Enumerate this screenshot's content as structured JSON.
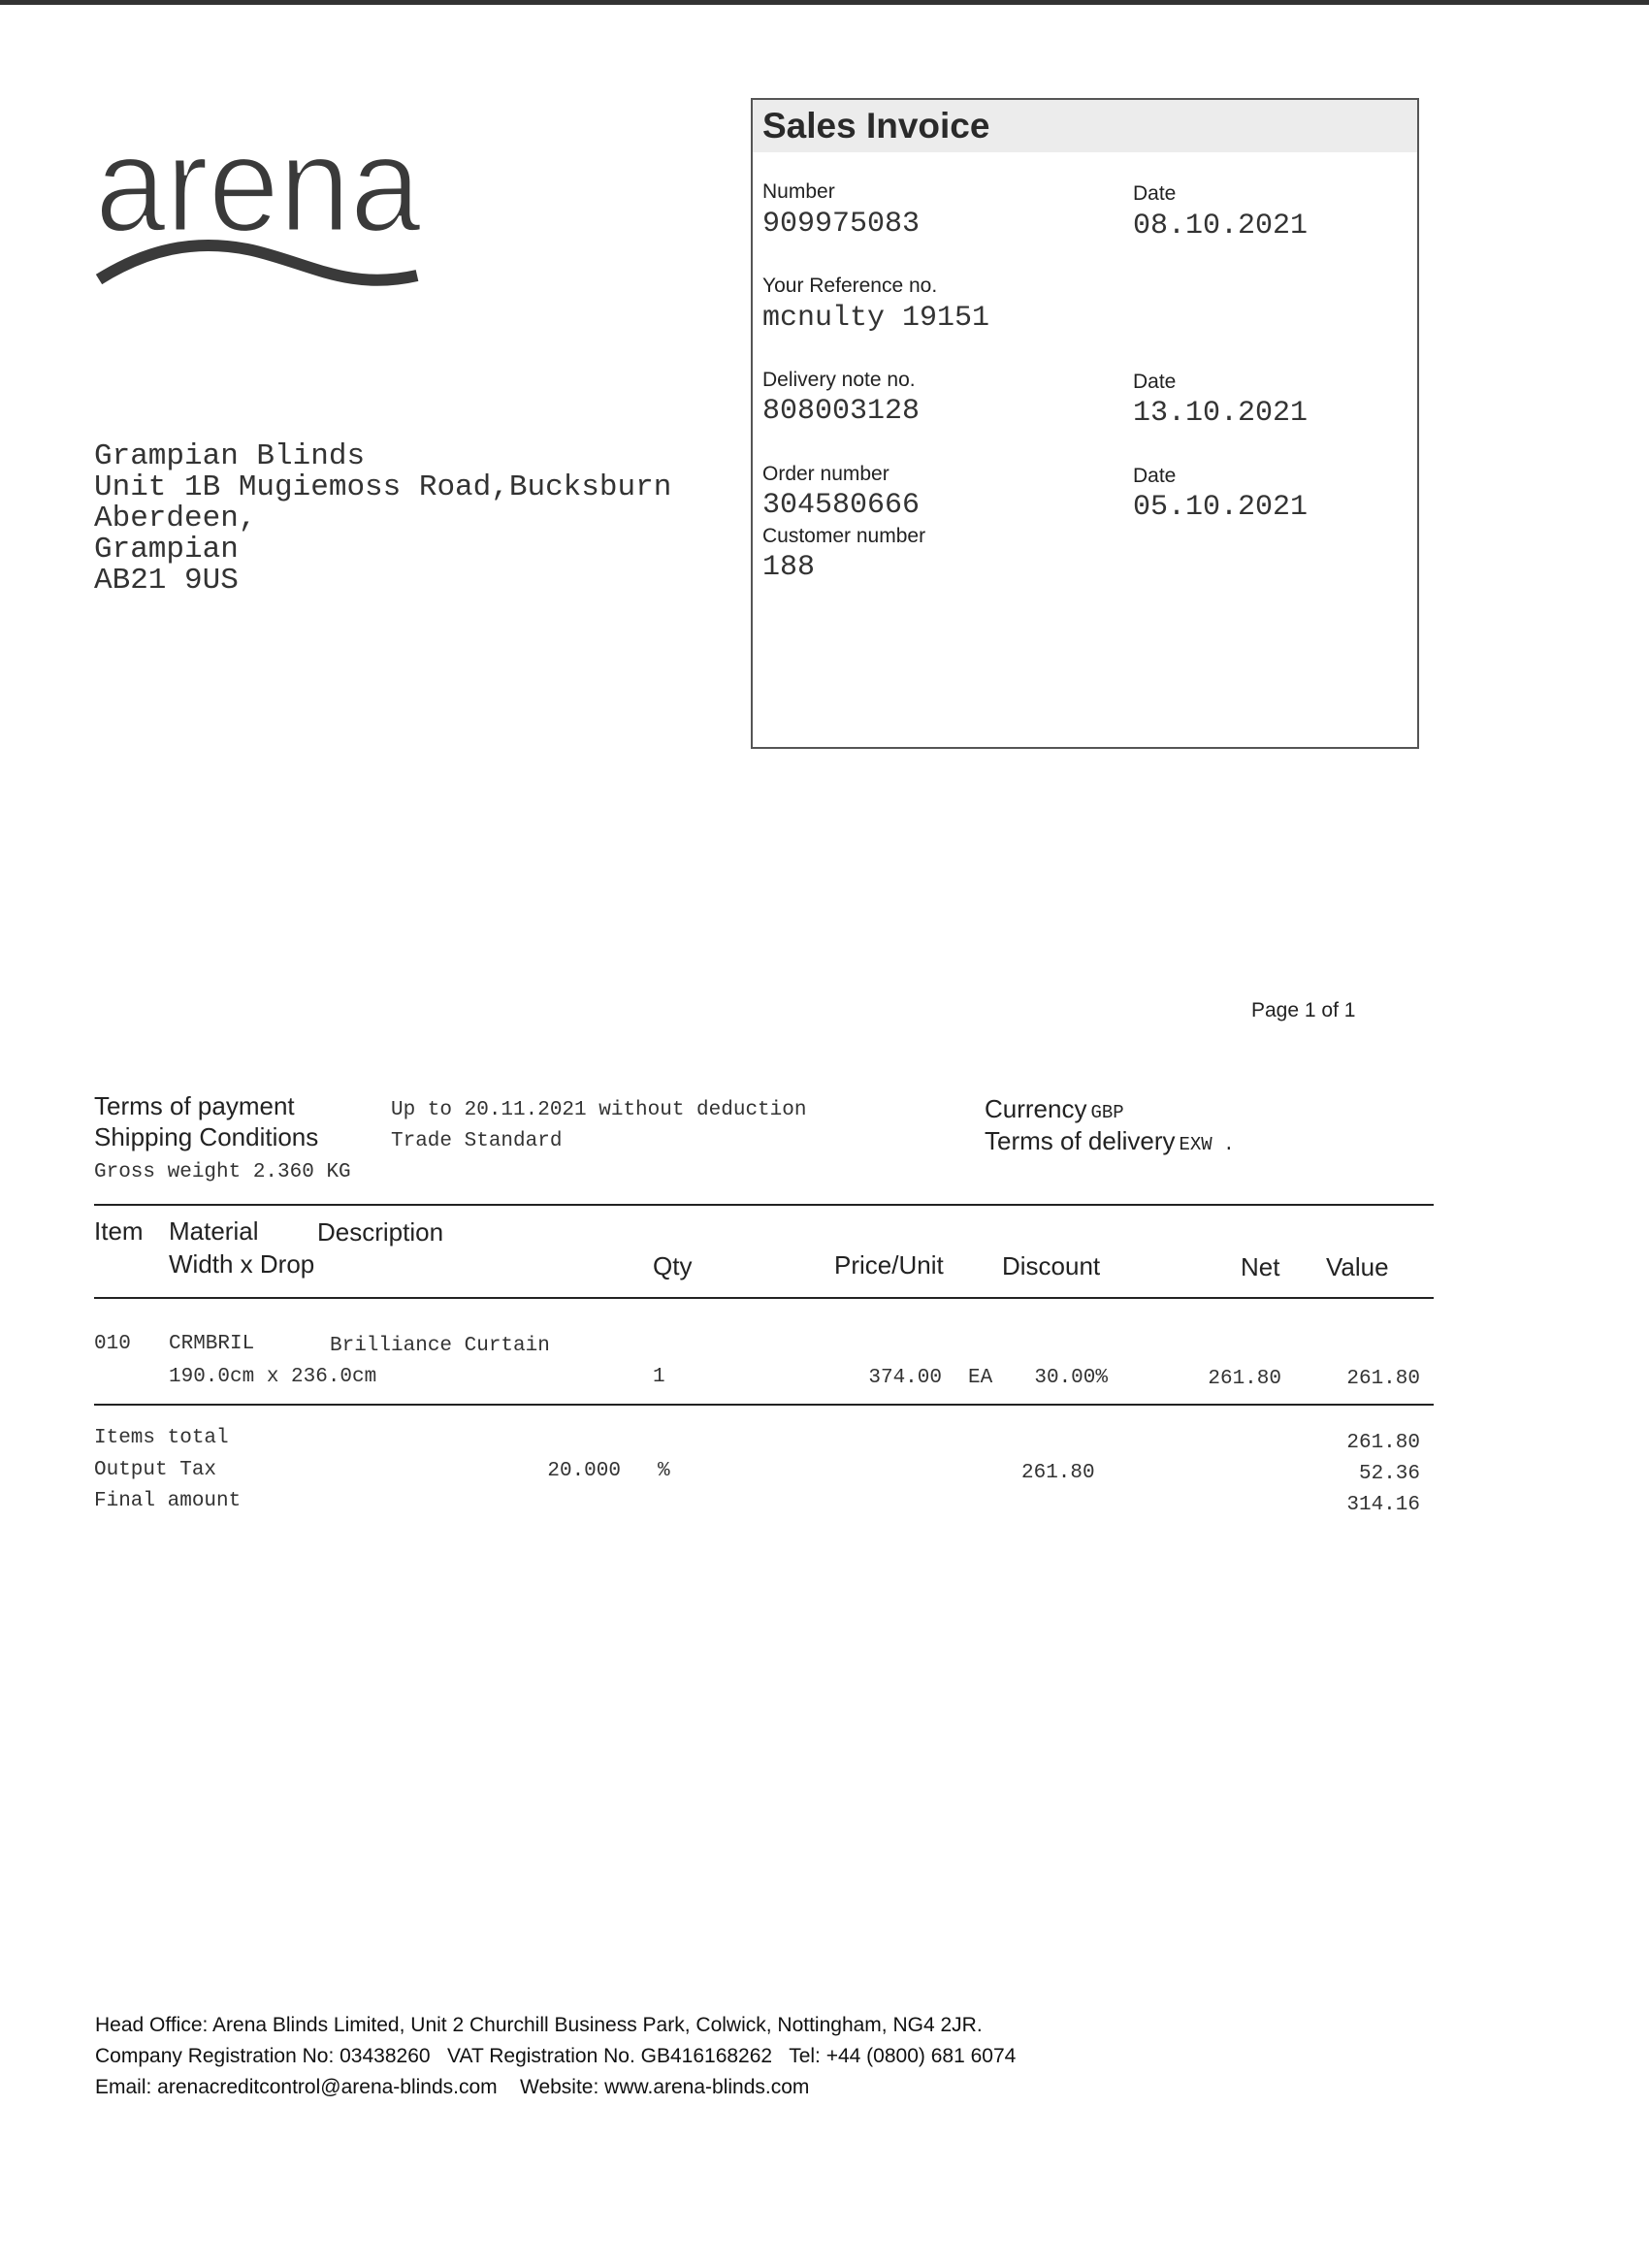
{
  "logo": {
    "text": "arena"
  },
  "recipient": {
    "lines": [
      "Grampian Blinds",
      "Unit 1B Mugiemoss Road,Bucksburn",
      "Aberdeen,",
      "Grampian",
      "AB21 9US"
    ]
  },
  "invoice_box": {
    "title": "Sales Invoice",
    "number_label": "Number",
    "number": "909975083",
    "date_label": "Date",
    "date": "08.10.2021",
    "reference_label": "Your Reference no.",
    "reference": "mcnulty 19151",
    "delivery_note_label": "Delivery note no.",
    "delivery_note": "808003128",
    "delivery_date_label": "Date",
    "delivery_date": "13.10.2021",
    "order_label": "Order number",
    "order": "304580666",
    "order_date_label": "Date",
    "order_date": "05.10.2021",
    "customer_label": "Customer number",
    "customer": "188"
  },
  "page_indicator": "Page 1 of 1",
  "terms": {
    "payment_label": "Terms of payment",
    "payment": "Up to 20.11.2021 without deduction",
    "shipping_label": "Shipping Conditions",
    "shipping": "Trade Standard",
    "gross_weight": "Gross weight 2.360 KG",
    "currency_label": "Currency",
    "currency": "GBP",
    "delivery_label": "Terms of delivery",
    "delivery": "EXW ."
  },
  "table": {
    "headers": {
      "item": "Item",
      "material": "Material",
      "description": "Description",
      "width_drop": "Width x Drop",
      "qty": "Qty",
      "price_unit": "Price/Unit",
      "discount": "Discount",
      "net": "Net",
      "value": "Value"
    },
    "rows": [
      {
        "item": "010",
        "material": "CRMBRIL",
        "description": "Brilliance Curtain",
        "dimensions": "190.0cm x 236.0cm",
        "qty": "1",
        "price": "374.00",
        "unit": "EA",
        "discount": "30.00%",
        "net": "261.80",
        "value": "261.80"
      }
    ]
  },
  "totals": {
    "items_total_label": "Items total",
    "items_total": "261.80",
    "tax_label": "Output Tax",
    "tax_rate": "20.000",
    "tax_pct": "%",
    "tax_base": "261.80",
    "tax_amount": "52.36",
    "final_label": "Final amount",
    "final": "314.16"
  },
  "footer": {
    "line1": "Head Office: Arena Blinds Limited, Unit 2 Churchill Business Park, Colwick, Nottingham, NG4 2JR.",
    "line2": "Company Registration No: 03438260   VAT Registration No. GB416168262   Tel: +44 (0800) 681 6074",
    "line3": "Email: arenacreditcontrol@arena-blinds.com    Website: www.arena-blinds.com"
  }
}
